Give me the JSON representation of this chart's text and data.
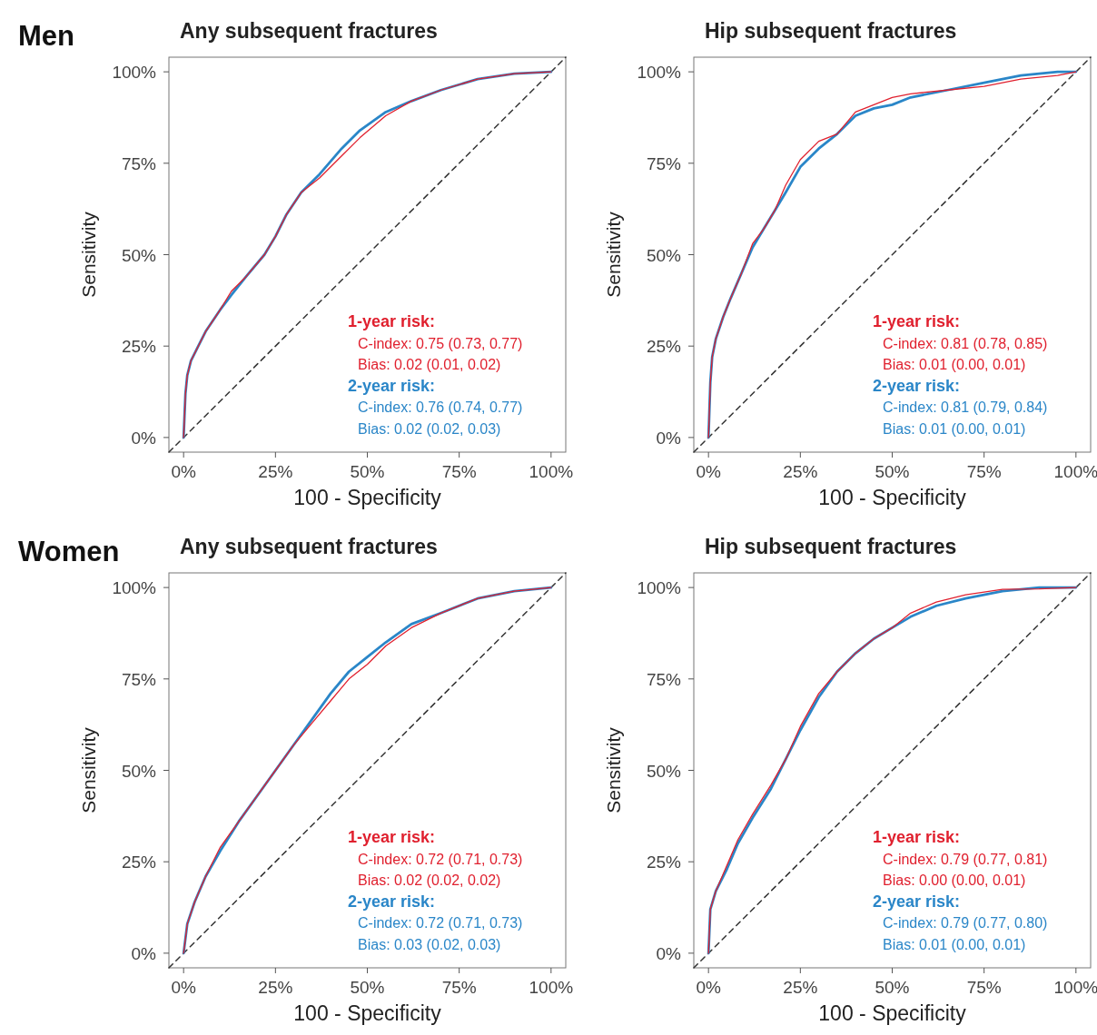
{
  "chart_data": [
    {
      "type": "line",
      "subtitle": "Men",
      "title": "Any subsequent fractures",
      "xlabel": "100 - Specificity",
      "ylabel": "Sensitivity",
      "xlim": [
        -4,
        104
      ],
      "ylim": [
        -4,
        104
      ],
      "xticks": [
        {
          "value": 0,
          "label": "0%"
        },
        {
          "value": 25,
          "label": "25%"
        },
        {
          "value": 50,
          "label": "50%"
        },
        {
          "value": 75,
          "label": "75%"
        },
        {
          "value": 100,
          "label": "100%"
        }
      ],
      "yticks": [
        {
          "value": 0,
          "label": "0%"
        },
        {
          "value": 25,
          "label": "25%"
        },
        {
          "value": 50,
          "label": "50%"
        },
        {
          "value": 75,
          "label": "75%"
        },
        {
          "value": 100,
          "label": "100%"
        }
      ],
      "grid": false,
      "marker": "none",
      "series": [
        {
          "color": "#e0202e",
          "x": [
            0,
            0.5,
            1,
            2,
            4,
            6,
            10,
            13,
            17,
            22,
            25,
            28,
            32,
            37,
            43,
            48,
            55,
            62,
            70,
            80,
            90,
            100
          ],
          "values": [
            0,
            12,
            17,
            21,
            25,
            29,
            35,
            40,
            44,
            50,
            55,
            61,
            67,
            71,
            77,
            82,
            88,
            92,
            95,
            98,
            99.5,
            100
          ]
        },
        {
          "color": "#2a86c8",
          "x": [
            0,
            0.5,
            1,
            2,
            4,
            6,
            10,
            13,
            17,
            22,
            25,
            28,
            32,
            37,
            43,
            48,
            55,
            62,
            70,
            80,
            90,
            100
          ],
          "values": [
            0,
            12,
            17,
            21,
            25,
            29,
            35,
            39,
            44,
            50,
            55,
            61,
            67,
            72,
            79,
            84,
            89,
            92,
            95,
            98,
            99.5,
            100
          ]
        },
        {
          "type": "line",
          "color": "#333333",
          "line_style": "dashed",
          "x": [
            -4,
            104
          ],
          "values": [
            -4,
            104
          ]
        }
      ],
      "annotations": [
        "1-year risk:",
        "C-index: 0.75 (0.73, 0.77)",
        "Bias: 0.02 (0.01, 0.02)",
        "2-year risk:",
        "C-index: 0.76 (0.74, 0.77)",
        "Bias: 0.02 (0.02, 0.03)"
      ]
    },
    {
      "type": "line",
      "title": "Hip subsequent fractures",
      "xlabel": "100 - Specificity",
      "ylabel": "Sensitivity",
      "xlim": [
        -4,
        104
      ],
      "ylim": [
        -4,
        104
      ],
      "xticks": [
        {
          "value": 0,
          "label": "0%"
        },
        {
          "value": 25,
          "label": "25%"
        },
        {
          "value": 50,
          "label": "50%"
        },
        {
          "value": 75,
          "label": "75%"
        },
        {
          "value": 100,
          "label": "100%"
        }
      ],
      "yticks": [
        {
          "value": 0,
          "label": "0%"
        },
        {
          "value": 25,
          "label": "25%"
        },
        {
          "value": 50,
          "label": "50%"
        },
        {
          "value": 75,
          "label": "75%"
        },
        {
          "value": 100,
          "label": "100%"
        }
      ],
      "grid": false,
      "marker": "none",
      "series": [
        {
          "color": "#e0202e",
          "x": [
            0,
            0.5,
            1,
            2,
            4,
            6,
            9,
            12,
            15,
            18,
            21,
            25,
            30,
            35,
            40,
            45,
            50,
            55,
            65,
            75,
            85,
            95,
            100
          ],
          "values": [
            0,
            15,
            22,
            27,
            33,
            38,
            45,
            53,
            57,
            62,
            69,
            76,
            81,
            83,
            89,
            91,
            93,
            94,
            95,
            96,
            98,
            99,
            100
          ]
        },
        {
          "color": "#2a86c8",
          "x": [
            0,
            0.5,
            1,
            2,
            4,
            6,
            9,
            12,
            15,
            18,
            21,
            25,
            30,
            35,
            40,
            45,
            50,
            55,
            65,
            75,
            85,
            95,
            100
          ],
          "values": [
            0,
            15,
            22,
            27,
            33,
            38,
            45,
            52,
            57,
            62,
            67,
            74,
            79,
            83,
            88,
            90,
            91,
            93,
            95,
            97,
            99,
            100,
            100
          ]
        },
        {
          "type": "line",
          "color": "#333333",
          "line_style": "dashed",
          "x": [
            -4,
            104
          ],
          "values": [
            -4,
            104
          ]
        }
      ],
      "annotations": [
        "1-year risk:",
        "C-index: 0.81 (0.78, 0.85)",
        "Bias: 0.01 (0.00, 0.01)",
        "2-year risk:",
        "C-index: 0.81 (0.79, 0.84)",
        "Bias: 0.01 (0.00, 0.01)"
      ]
    },
    {
      "type": "line",
      "subtitle": "Women",
      "title": "Any subsequent fractures",
      "xlabel": "100 - Specificity",
      "ylabel": "Sensitivity",
      "xlim": [
        -4,
        104
      ],
      "ylim": [
        -4,
        104
      ],
      "xticks": [
        {
          "value": 0,
          "label": "0%"
        },
        {
          "value": 25,
          "label": "25%"
        },
        {
          "value": 50,
          "label": "50%"
        },
        {
          "value": 75,
          "label": "75%"
        },
        {
          "value": 100,
          "label": "100%"
        }
      ],
      "yticks": [
        {
          "value": 0,
          "label": "0%"
        },
        {
          "value": 25,
          "label": "25%"
        },
        {
          "value": 50,
          "label": "50%"
        },
        {
          "value": 75,
          "label": "75%"
        },
        {
          "value": 100,
          "label": "100%"
        }
      ],
      "grid": false,
      "marker": "none",
      "series": [
        {
          "color": "#e0202e",
          "x": [
            0,
            1,
            3,
            6,
            10,
            15,
            20,
            25,
            30,
            35,
            40,
            45,
            50,
            55,
            62,
            70,
            80,
            90,
            100
          ],
          "values": [
            0,
            8,
            14,
            21,
            29,
            36,
            43,
            50,
            57,
            63,
            69,
            75,
            79,
            84,
            89,
            93,
            97,
            99,
            100
          ]
        },
        {
          "color": "#2a86c8",
          "x": [
            0,
            1,
            3,
            6,
            10,
            15,
            20,
            25,
            30,
            35,
            40,
            45,
            50,
            55,
            62,
            70,
            80,
            90,
            100
          ],
          "values": [
            0,
            8,
            14,
            21,
            28,
            36,
            43,
            50,
            57,
            64,
            71,
            77,
            81,
            85,
            90,
            93,
            97,
            99,
            100
          ]
        },
        {
          "type": "line",
          "color": "#333333",
          "line_style": "dashed",
          "x": [
            -4,
            104
          ],
          "values": [
            -4,
            104
          ]
        }
      ],
      "annotations": [
        "1-year risk:",
        "C-index: 0.72 (0.71, 0.73)",
        "Bias: 0.02 (0.02, 0.02)",
        "2-year risk:",
        "C-index: 0.72 (0.71, 0.73)",
        "Bias: 0.03 (0.02, 0.03)"
      ]
    },
    {
      "type": "line",
      "title": "Hip subsequent fractures",
      "xlabel": "100 - Specificity",
      "ylabel": "Sensitivity",
      "xlim": [
        -4,
        104
      ],
      "ylim": [
        -4,
        104
      ],
      "xticks": [
        {
          "value": 0,
          "label": "0%"
        },
        {
          "value": 25,
          "label": "25%"
        },
        {
          "value": 50,
          "label": "50%"
        },
        {
          "value": 75,
          "label": "75%"
        },
        {
          "value": 100,
          "label": "100%"
        }
      ],
      "yticks": [
        {
          "value": 0,
          "label": "0%"
        },
        {
          "value": 25,
          "label": "25%"
        },
        {
          "value": 50,
          "label": "50%"
        },
        {
          "value": 75,
          "label": "75%"
        },
        {
          "value": 100,
          "label": "100%"
        }
      ],
      "grid": false,
      "marker": "none",
      "series": [
        {
          "color": "#e0202e",
          "x": [
            0,
            0.5,
            2,
            5,
            8,
            12,
            17,
            21,
            25,
            30,
            35,
            40,
            45,
            50,
            55,
            62,
            70,
            80,
            90,
            100
          ],
          "values": [
            0,
            12,
            17,
            24,
            31,
            38,
            46,
            53,
            62,
            71,
            77,
            82,
            86,
            89,
            93,
            96,
            98,
            99.5,
            99.6,
            100
          ]
        },
        {
          "color": "#2a86c8",
          "x": [
            0,
            0.5,
            2,
            5,
            8,
            12,
            17,
            21,
            25,
            30,
            35,
            40,
            45,
            50,
            55,
            62,
            70,
            80,
            90,
            100
          ],
          "values": [
            0,
            12,
            17,
            23,
            30,
            37,
            45,
            53,
            61,
            70,
            77,
            82,
            86,
            89,
            92,
            95,
            97,
            99,
            100,
            100
          ]
        },
        {
          "type": "line",
          "color": "#333333",
          "line_style": "dashed",
          "x": [
            -4,
            104
          ],
          "values": [
            -4,
            104
          ]
        }
      ],
      "annotations": [
        "1-year risk:",
        "C-index: 0.79 (0.77, 0.81)",
        "Bias: 0.00 (0.00, 0.01)",
        "2-year risk:",
        "C-index: 0.79 (0.77, 0.80)",
        "Bias: 0.01 (0.00, 0.01)"
      ]
    }
  ]
}
